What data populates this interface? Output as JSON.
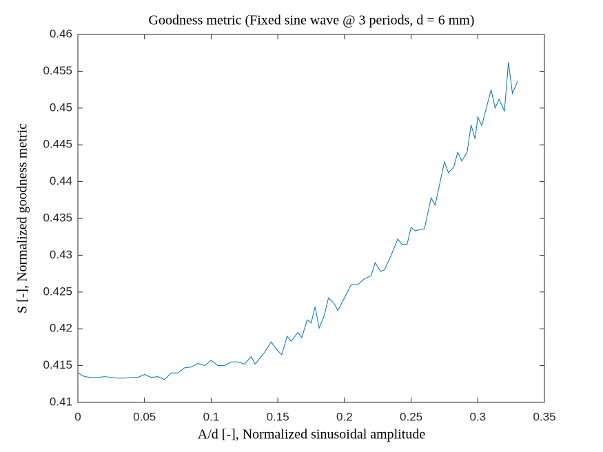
{
  "chart_data": {
    "type": "line",
    "title": "Goodness metric (Fixed sine wave @ 3 periods, d = 6 mm)",
    "x_label": "A/d [-], Normalized sinusoidal amplitude",
    "y_label": "S [-], Normalized goodness metric",
    "xlim": [
      0,
      0.35
    ],
    "xticks": [
      0,
      0.05,
      0.1,
      0.15,
      0.2,
      0.25,
      0.3,
      0.35
    ],
    "ylim": [
      0.41,
      0.46
    ],
    "yticks": [
      0.41,
      0.415,
      0.42,
      0.425,
      0.43,
      0.435,
      0.44,
      0.445,
      0.45,
      0.455,
      0.46
    ],
    "grid": false,
    "color": "#0072bd",
    "x": [
      0,
      0.005,
      0.01,
      0.015,
      0.02,
      0.025,
      0.03,
      0.035,
      0.04,
      0.045,
      0.05,
      0.055,
      0.06,
      0.065,
      0.07,
      0.075,
      0.08,
      0.085,
      0.09,
      0.095,
      0.1,
      0.105,
      0.11,
      0.115,
      0.12,
      0.125,
      0.13,
      0.133,
      0.14,
      0.145,
      0.15,
      0.153,
      0.157,
      0.16,
      0.165,
      0.168,
      0.172,
      0.175,
      0.178,
      0.181,
      0.185,
      0.188,
      0.192,
      0.195,
      0.2,
      0.205,
      0.21,
      0.215,
      0.22,
      0.223,
      0.227,
      0.23,
      0.235,
      0.24,
      0.243,
      0.247,
      0.25,
      0.253,
      0.257,
      0.26,
      0.265,
      0.268,
      0.275,
      0.278,
      0.282,
      0.285,
      0.288,
      0.292,
      0.295,
      0.298,
      0.3,
      0.303,
      0.31,
      0.313,
      0.316,
      0.32,
      0.323,
      0.326,
      0.33
    ],
    "values": [
      0.414,
      0.4135,
      0.4134,
      0.4134,
      0.4135,
      0.4134,
      0.4133,
      0.4133,
      0.4134,
      0.4134,
      0.4138,
      0.4134,
      0.4135,
      0.4131,
      0.414,
      0.414,
      0.4147,
      0.4148,
      0.4153,
      0.415,
      0.4157,
      0.415,
      0.415,
      0.4155,
      0.4155,
      0.4152,
      0.4162,
      0.4152,
      0.4168,
      0.4182,
      0.417,
      0.4165,
      0.419,
      0.4183,
      0.4195,
      0.4188,
      0.4212,
      0.4208,
      0.423,
      0.4201,
      0.4219,
      0.4242,
      0.4235,
      0.4225,
      0.4242,
      0.426,
      0.426,
      0.4268,
      0.4272,
      0.429,
      0.4278,
      0.428,
      0.43,
      0.4322,
      0.4315,
      0.4315,
      0.4338,
      0.4333,
      0.4335,
      0.4336,
      0.4378,
      0.4368,
      0.4427,
      0.4412,
      0.442,
      0.444,
      0.4428,
      0.444,
      0.4477,
      0.4458,
      0.4488,
      0.4476,
      0.4525,
      0.45,
      0.4512,
      0.4496,
      0.4562,
      0.452,
      0.4537
    ]
  }
}
